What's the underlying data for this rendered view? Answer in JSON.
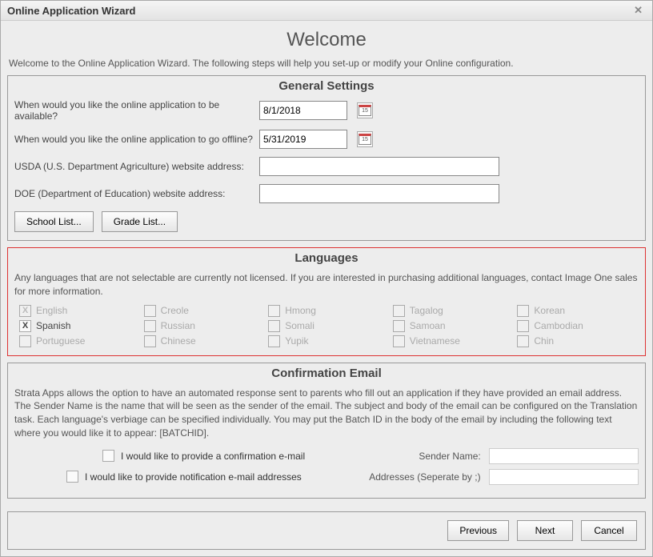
{
  "window": {
    "title": "Online Application Wizard",
    "close_label": "✕"
  },
  "header": {
    "title": "Welcome",
    "intro": "Welcome to the Online Application Wizard. The following steps will help you set-up or modify your Online configuration."
  },
  "general": {
    "title": "General Settings",
    "available_label": "When would you like the online application to be available?",
    "available_value": "8/1/2018",
    "offline_label": "When would you like the online application to go offline?",
    "offline_value": "5/31/2019",
    "usda_label": "USDA (U.S. Department Agriculture) website address:",
    "usda_value": "",
    "doe_label": "DOE (Department of Education) website address:",
    "doe_value": "",
    "school_btn": "School List...",
    "grade_btn": "Grade List...",
    "calendar_day": "15"
  },
  "languages": {
    "title": "Languages",
    "desc": "Any languages that are not selectable are currently not licensed. If you are interested in purchasing additional languages, contact Image One sales for more information.",
    "items": [
      {
        "label": "English",
        "enabled": false,
        "checked": true
      },
      {
        "label": "Creole",
        "enabled": false,
        "checked": false
      },
      {
        "label": "Hmong",
        "enabled": false,
        "checked": false
      },
      {
        "label": "Tagalog",
        "enabled": false,
        "checked": false
      },
      {
        "label": "Korean",
        "enabled": false,
        "checked": false
      },
      {
        "label": "Spanish",
        "enabled": true,
        "checked": true
      },
      {
        "label": "Russian",
        "enabled": false,
        "checked": false
      },
      {
        "label": "Somali",
        "enabled": false,
        "checked": false
      },
      {
        "label": "Samoan",
        "enabled": false,
        "checked": false
      },
      {
        "label": "Cambodian",
        "enabled": false,
        "checked": false
      },
      {
        "label": "Portuguese",
        "enabled": false,
        "checked": false
      },
      {
        "label": "Chinese",
        "enabled": false,
        "checked": false
      },
      {
        "label": "Yupik",
        "enabled": false,
        "checked": false
      },
      {
        "label": "Vietnamese",
        "enabled": false,
        "checked": false
      },
      {
        "label": "Chin",
        "enabled": false,
        "checked": false
      }
    ]
  },
  "confirmation": {
    "title": "Confirmation Email",
    "desc": "Strata Apps allows the option to have an automated response sent to parents who fill out an application if they have provided an email address. The Sender Name is the name that will be seen as the sender of the email. The subject and body of the email can be configured on the Translation task. Each language's verbiage can be specified individually. You may put the Batch ID in the body of the email by including the following text where you would like it to appear: [BATCHID].",
    "provide_confirmation_label": "I would like to provide a confirmation e-mail",
    "provide_notification_label": "I would like to provide notification e-mail addresses",
    "sender_label": "Sender Name:",
    "sender_value": "",
    "addresses_label": "Addresses (Seperate by ;)",
    "addresses_value": ""
  },
  "footer": {
    "previous": "Previous",
    "next": "Next",
    "cancel": "Cancel"
  },
  "colors": {
    "highlight_border": "#d33",
    "text": "#444",
    "disabled_text": "#aaa",
    "window_bg": "#ededed"
  }
}
